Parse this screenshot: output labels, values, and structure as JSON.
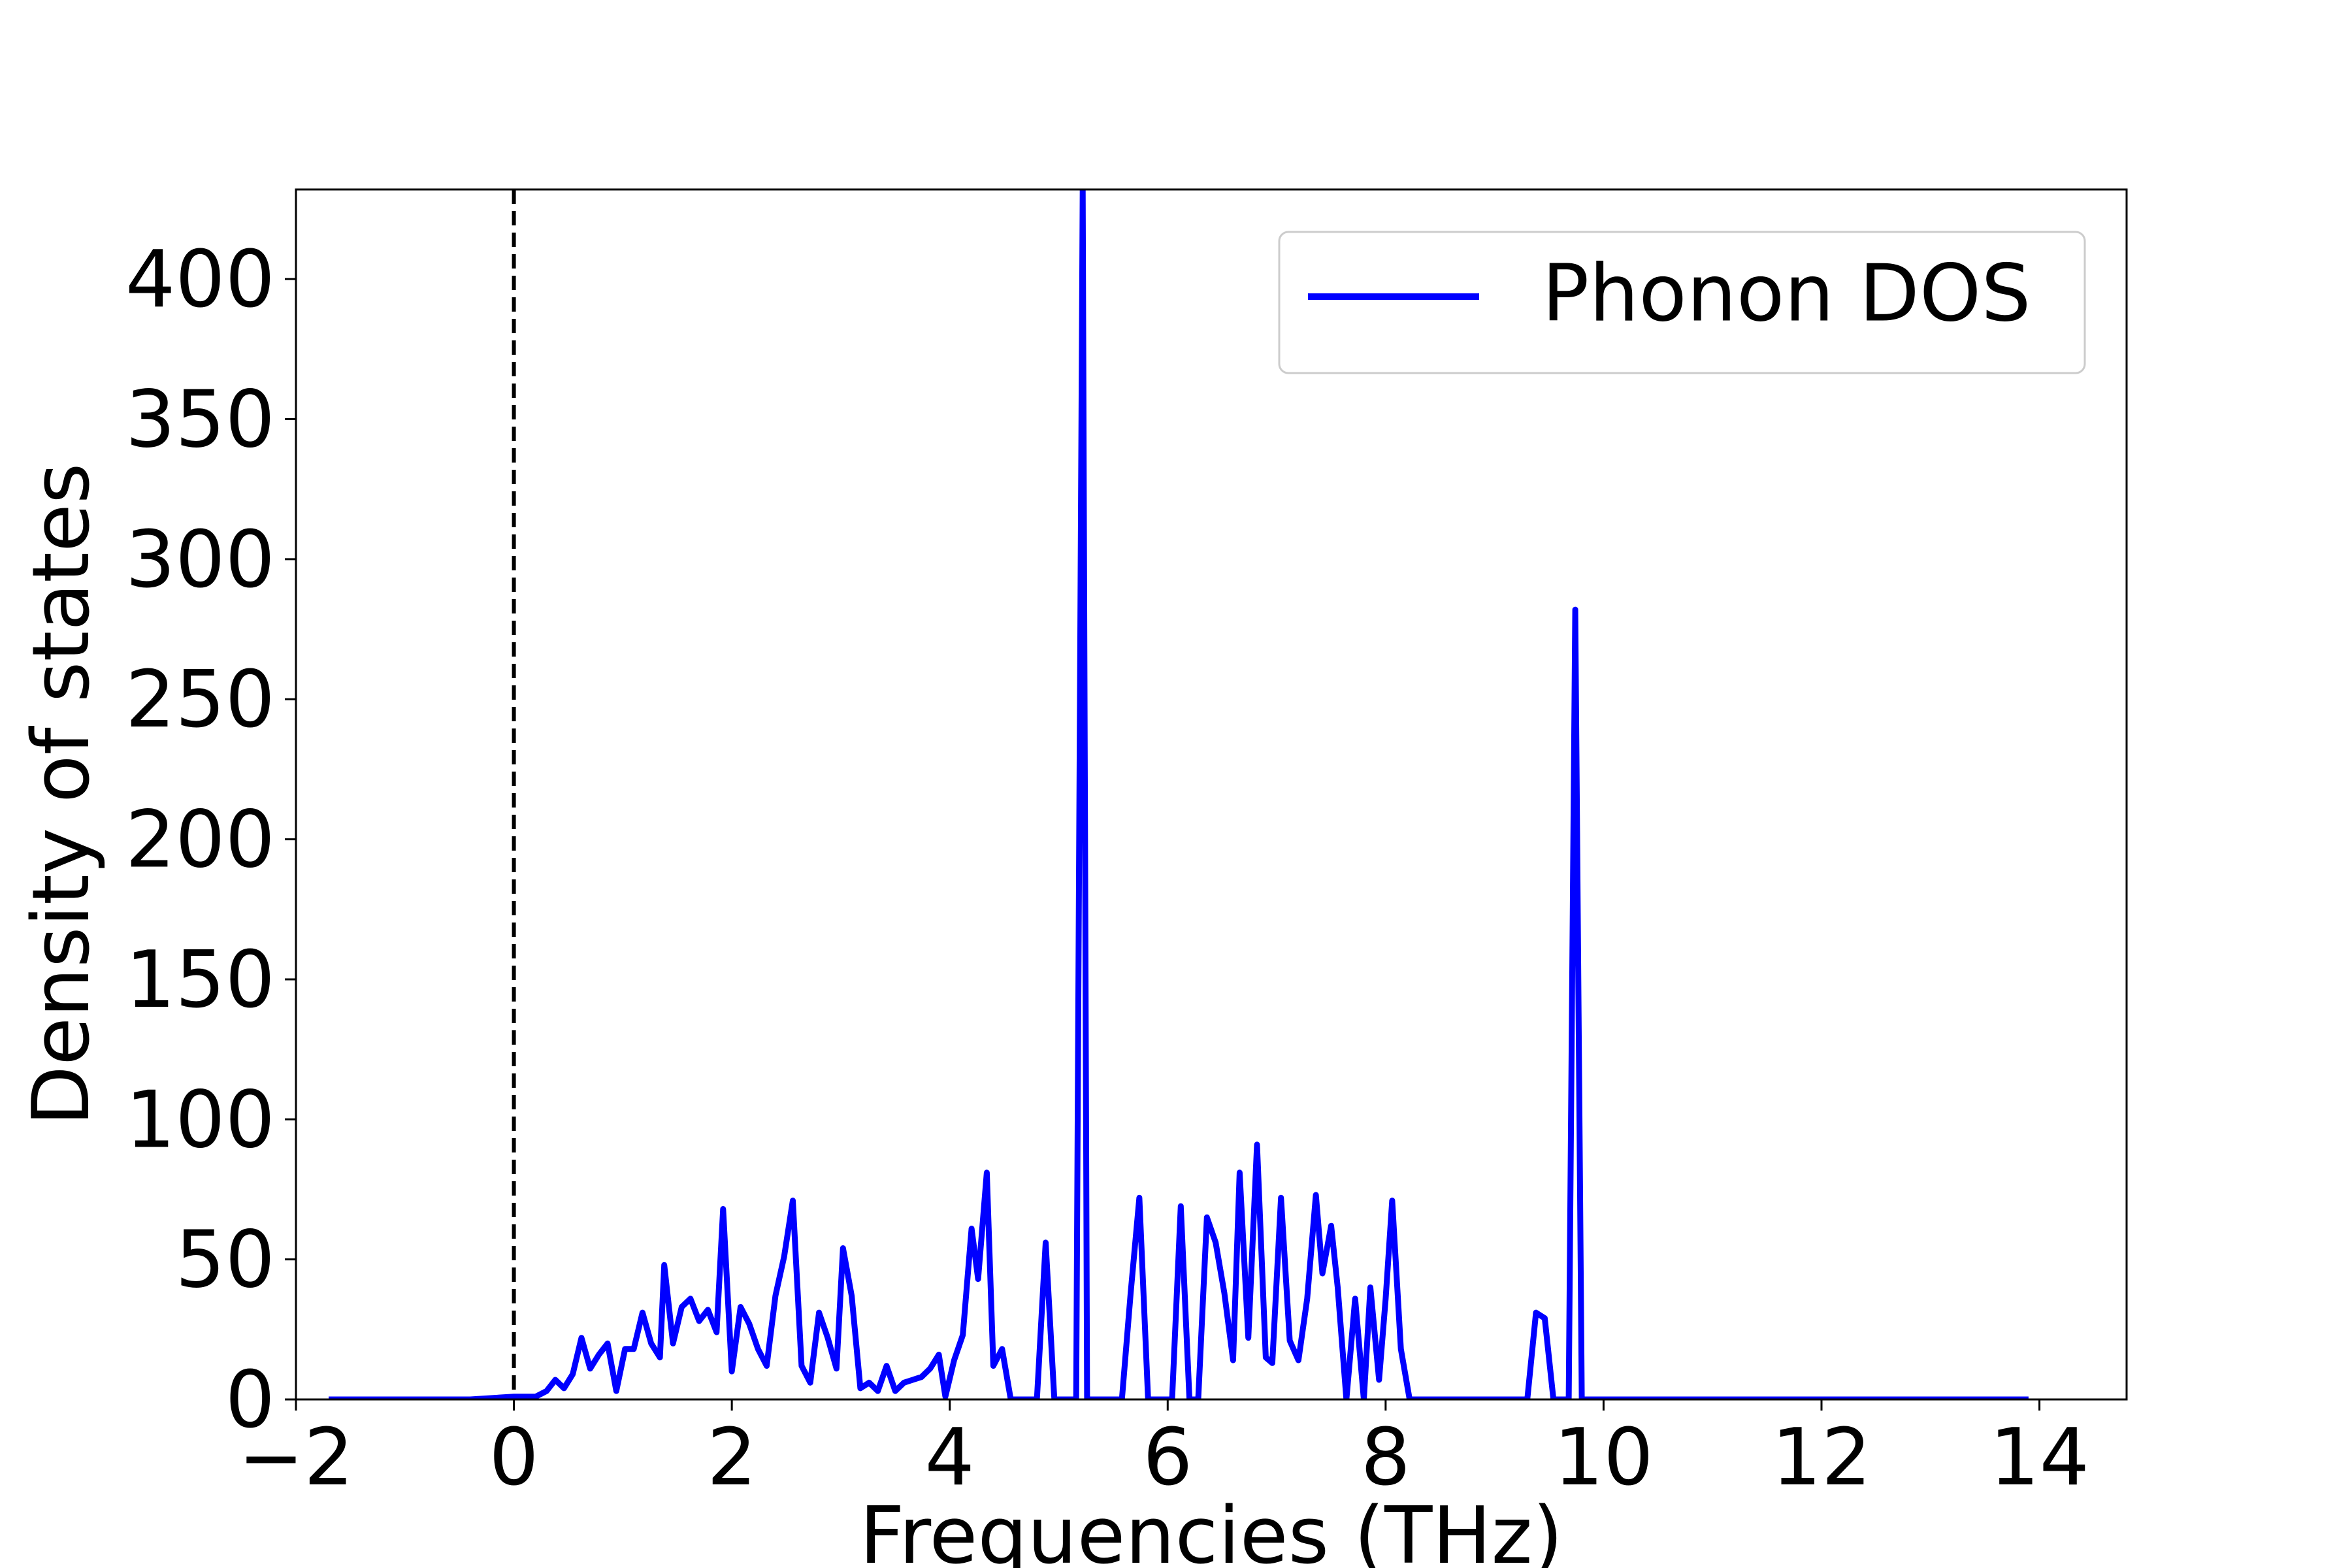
{
  "chart_data": {
    "type": "line",
    "xlabel": "Frequencies (THz)",
    "ylabel": "Density of states",
    "xlim": [
      -2.0,
      14.8
    ],
    "ylim": [
      0,
      432
    ],
    "xticks": [
      -2,
      0,
      2,
      4,
      6,
      8,
      10,
      12,
      14
    ],
    "yticks": [
      0,
      50,
      100,
      150,
      200,
      250,
      300,
      350,
      400
    ],
    "xtick_labels": [
      "−2",
      "0",
      "2",
      "4",
      "6",
      "8",
      "10",
      "12",
      "14"
    ],
    "ytick_labels": [
      "0",
      "50",
      "100",
      "150",
      "200",
      "250",
      "300",
      "350",
      "400"
    ],
    "grid": false,
    "legend_position": "top-right",
    "reference_line": {
      "x": 0,
      "style": "dashed",
      "color": "#000000"
    },
    "series": [
      {
        "name": "Phonon DOS",
        "color": "#0000ff",
        "x": [
          -1.7,
          -0.4,
          0.0,
          0.2,
          0.3,
          0.38,
          0.46,
          0.54,
          0.62,
          0.7,
          0.78,
          0.86,
          0.94,
          1.02,
          1.1,
          1.18,
          1.26,
          1.34,
          1.38,
          1.46,
          1.54,
          1.62,
          1.7,
          1.78,
          1.86,
          1.92,
          2.0,
          2.08,
          2.16,
          2.24,
          2.32,
          2.4,
          2.48,
          2.56,
          2.64,
          2.72,
          2.8,
          2.88,
          2.96,
          3.02,
          3.1,
          3.18,
          3.26,
          3.34,
          3.42,
          3.5,
          3.58,
          3.66,
          3.74,
          3.82,
          3.9,
          3.96,
          4.04,
          4.12,
          4.2,
          4.26,
          4.34,
          4.4,
          4.48,
          4.56,
          4.64,
          4.72,
          4.8,
          4.88,
          4.96,
          5.02,
          5.1,
          5.16,
          5.22,
          5.26,
          5.34,
          5.42,
          5.5,
          5.58,
          5.66,
          5.74,
          5.82,
          5.9,
          5.96,
          6.04,
          6.12,
          6.2,
          6.28,
          6.36,
          6.44,
          6.52,
          6.6,
          6.66,
          6.74,
          6.82,
          6.9,
          6.96,
          7.04,
          7.12,
          7.2,
          7.28,
          7.36,
          7.42,
          7.5,
          7.56,
          7.64,
          7.72,
          7.8,
          7.86,
          7.94,
          8.0,
          8.06,
          8.14,
          8.22,
          8.3,
          8.9,
          9.3,
          9.38,
          9.46,
          9.54,
          9.62,
          9.68,
          9.74,
          9.8,
          9.86,
          9.94,
          13.9
        ],
        "y": [
          0,
          0,
          1,
          1,
          3,
          7,
          4,
          9,
          22,
          11,
          16,
          20,
          3,
          18,
          18,
          31,
          20,
          15,
          48,
          20,
          33,
          36,
          28,
          32,
          24,
          68,
          10,
          33,
          27,
          18,
          12,
          37,
          51,
          71,
          12,
          6,
          31,
          22,
          11,
          54,
          37,
          4,
          6,
          3,
          12,
          3,
          6,
          7,
          8,
          11,
          16,
          1,
          14,
          23,
          61,
          43,
          81,
          12,
          18,
          0,
          0,
          0,
          0,
          56,
          0,
          0,
          0,
          0,
          432,
          0,
          0,
          0,
          0,
          0,
          38,
          72,
          0,
          0,
          0,
          0,
          69,
          0,
          0,
          65,
          56,
          38,
          14,
          81,
          22,
          91,
          15,
          13,
          72,
          21,
          14,
          36,
          73,
          45,
          62,
          40,
          0,
          36,
          0,
          40,
          7,
          36,
          71,
          18,
          0,
          0,
          0,
          0,
          31,
          29,
          0,
          0,
          0,
          282,
          0,
          0,
          0,
          0
        ]
      }
    ]
  }
}
